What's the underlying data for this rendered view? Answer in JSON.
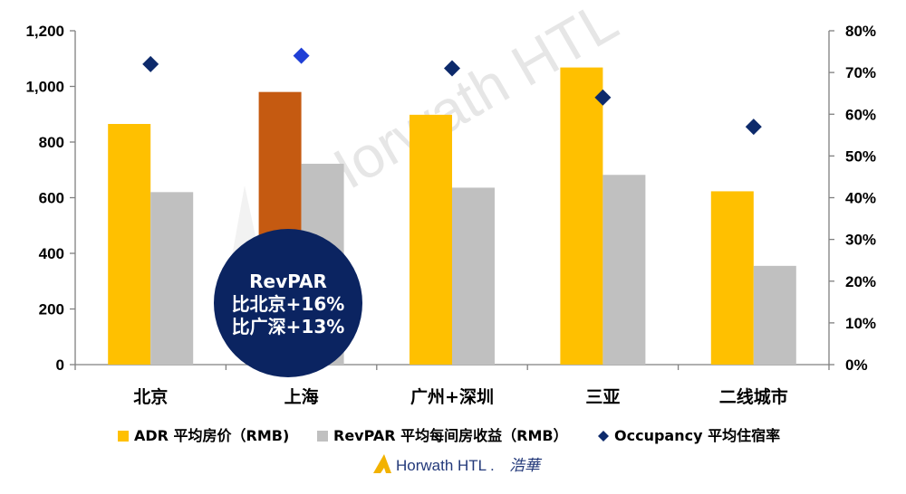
{
  "chart_data": {
    "type": "bar",
    "categories": [
      "北京",
      "上海",
      "广州+深圳",
      "三亚",
      "二线城市"
    ],
    "series": [
      {
        "name": "ADR 平均房价（RMB)",
        "type": "bar",
        "axis": "left",
        "color": "#ffc000",
        "values": [
          865,
          980,
          898,
          1068,
          623
        ]
      },
      {
        "name": "RevPAR 平均每间房收益（RMB）",
        "type": "bar",
        "axis": "left",
        "color": "#c0c0c0",
        "values": [
          620,
          722,
          636,
          682,
          355
        ]
      },
      {
        "name": "Occupancy 平均住宿率",
        "type": "scatter",
        "axis": "right",
        "color": "#0d2a6b",
        "values": [
          0.72,
          0.74,
          0.71,
          0.64,
          0.57
        ]
      }
    ],
    "highlight": {
      "series": 0,
      "index": 1,
      "color": "#c55a11"
    },
    "highlight_marker": {
      "series": 2,
      "index": 1,
      "color": "#1f3fd6"
    },
    "ylim": [
      0,
      1200
    ],
    "y_ticks": [
      "0",
      "200",
      "400",
      "600",
      "800",
      "1,000",
      "1,200"
    ],
    "y2lim": [
      0,
      0.8
    ],
    "y2_ticks": [
      "0%",
      "10%",
      "20%",
      "30%",
      "40%",
      "50%",
      "60%",
      "70%",
      "80%"
    ],
    "grid": false,
    "legend_position": "bottom"
  },
  "callout": {
    "lines": [
      "RevPAR",
      "比北京+16%",
      "比广深+13%"
    ],
    "color": "#0b2461"
  },
  "watermark": "Horwath HTL",
  "logo": {
    "name": "Horwath HTL",
    "tm": ".",
    "chinese": "浩華"
  }
}
